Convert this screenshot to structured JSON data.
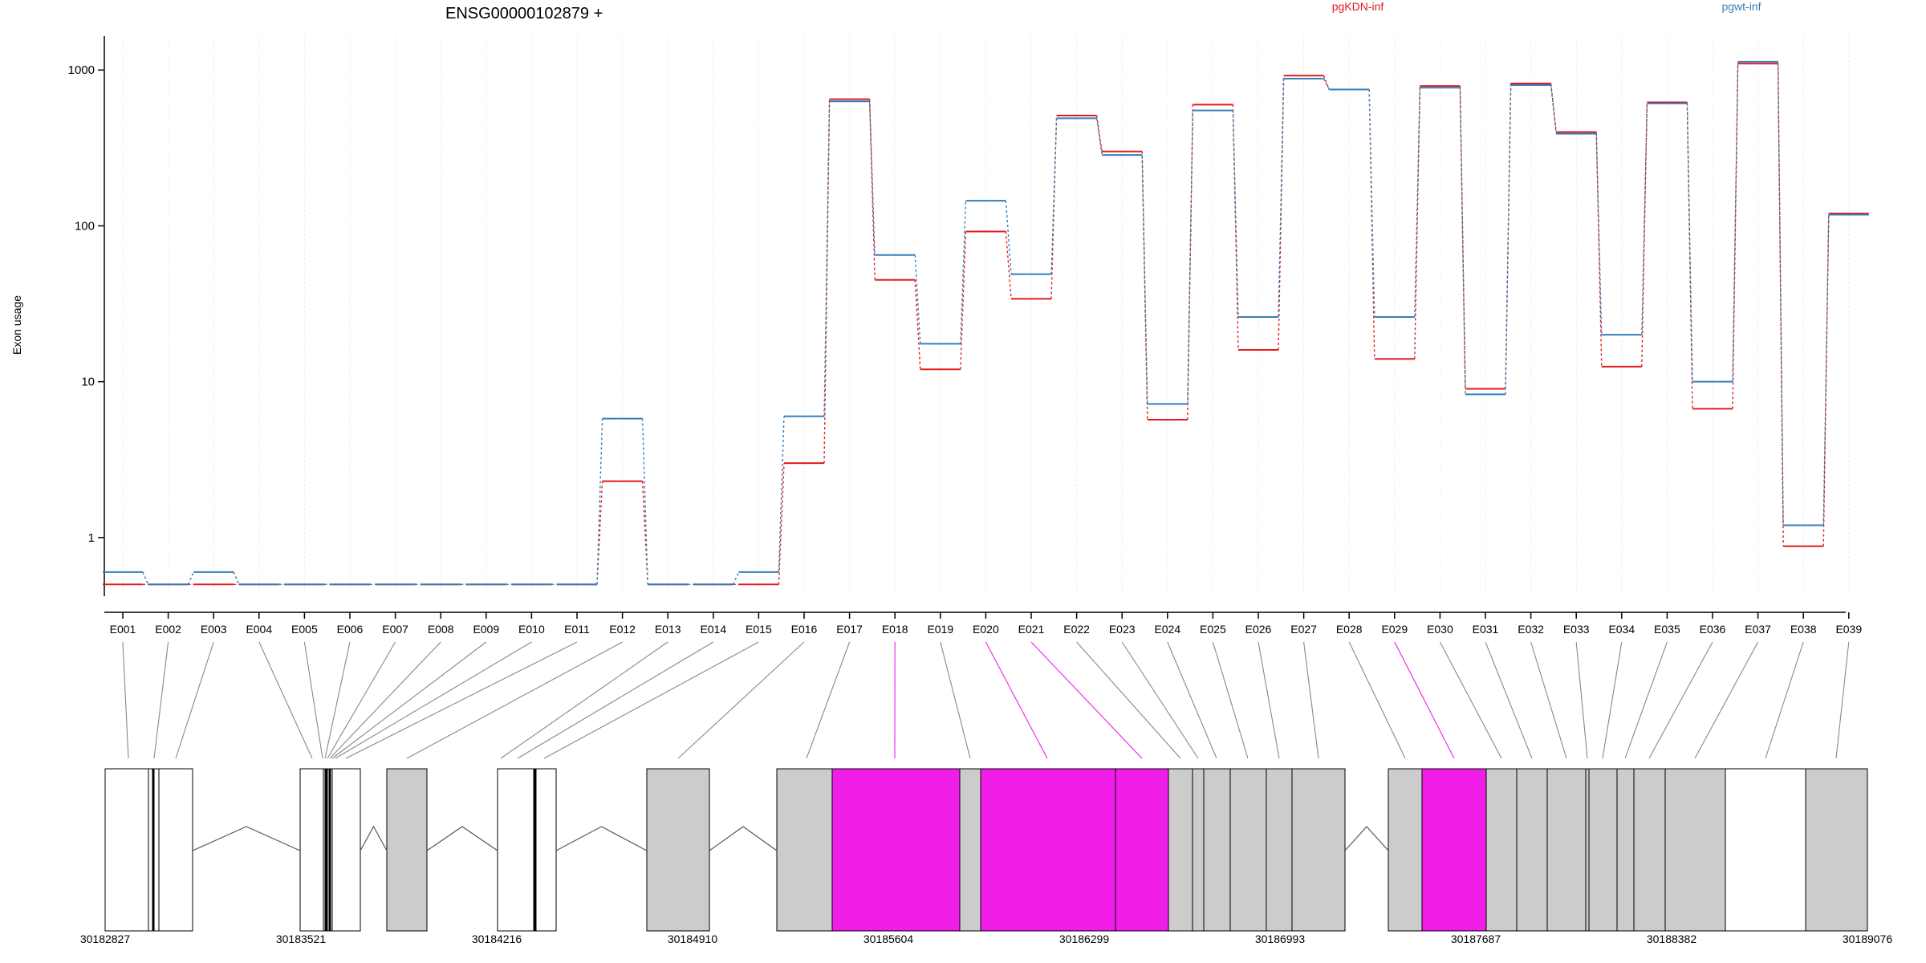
{
  "chart_data": {
    "type": "line",
    "title": "ENSG00000102879 +",
    "ylabel": "Exon usage",
    "yscale": "log",
    "ylim": [
      0.42,
      1650
    ],
    "yticks": [
      1,
      10,
      100,
      1000
    ],
    "ytick_labels": [
      "1",
      "10",
      "100",
      "1000"
    ],
    "grid": "vertical, light",
    "legend_placement": "top",
    "categories": [
      "E001",
      "E002",
      "E003",
      "E004",
      "E005",
      "E006",
      "E007",
      "E008",
      "E009",
      "E010",
      "E011",
      "E012",
      "E013",
      "E014",
      "E015",
      "E016",
      "E017",
      "E018",
      "E019",
      "E020",
      "E021",
      "E022",
      "E023",
      "E024",
      "E025",
      "E026",
      "E027",
      "E028",
      "E029",
      "E030",
      "E031",
      "E032",
      "E033",
      "E034",
      "E035",
      "E036",
      "E037",
      "E038",
      "E039"
    ],
    "series": [
      {
        "name": "pgKDN-inf",
        "color": "#e41a1c",
        "values": [
          0.5,
          0.5,
          0.5,
          0.5,
          0.5,
          0.5,
          0.5,
          0.5,
          0.5,
          0.5,
          0.5,
          2.3,
          0.5,
          0.5,
          0.5,
          3.0,
          650,
          45,
          12,
          92,
          34,
          510,
          300,
          5.7,
          600,
          16,
          920,
          750,
          14,
          790,
          9,
          820,
          400,
          12.5,
          620,
          6.7,
          1100,
          0.88,
          120
        ]
      },
      {
        "name": "pgwt-inf",
        "color": "#377eb8",
        "values": [
          0.6,
          0.5,
          0.6,
          0.5,
          0.5,
          0.5,
          0.5,
          0.5,
          0.5,
          0.5,
          0.5,
          5.8,
          0.5,
          0.5,
          0.6,
          6.0,
          630,
          65,
          17.5,
          145,
          49,
          490,
          285,
          7.2,
          550,
          26,
          880,
          750,
          26,
          770,
          8.3,
          800,
          390,
          20,
          610,
          10,
          1130,
          1.2,
          118
        ]
      }
    ],
    "highlight_color": "#f01ee8",
    "highlighted_exons": [
      "E018",
      "E020",
      "E021",
      "E029"
    ],
    "genomic_axis": {
      "ticks": [
        "30182827",
        "30183521",
        "30184216",
        "30184910",
        "30185604",
        "30186299",
        "30186993",
        "30187687",
        "30188382",
        "30189076"
      ]
    }
  }
}
